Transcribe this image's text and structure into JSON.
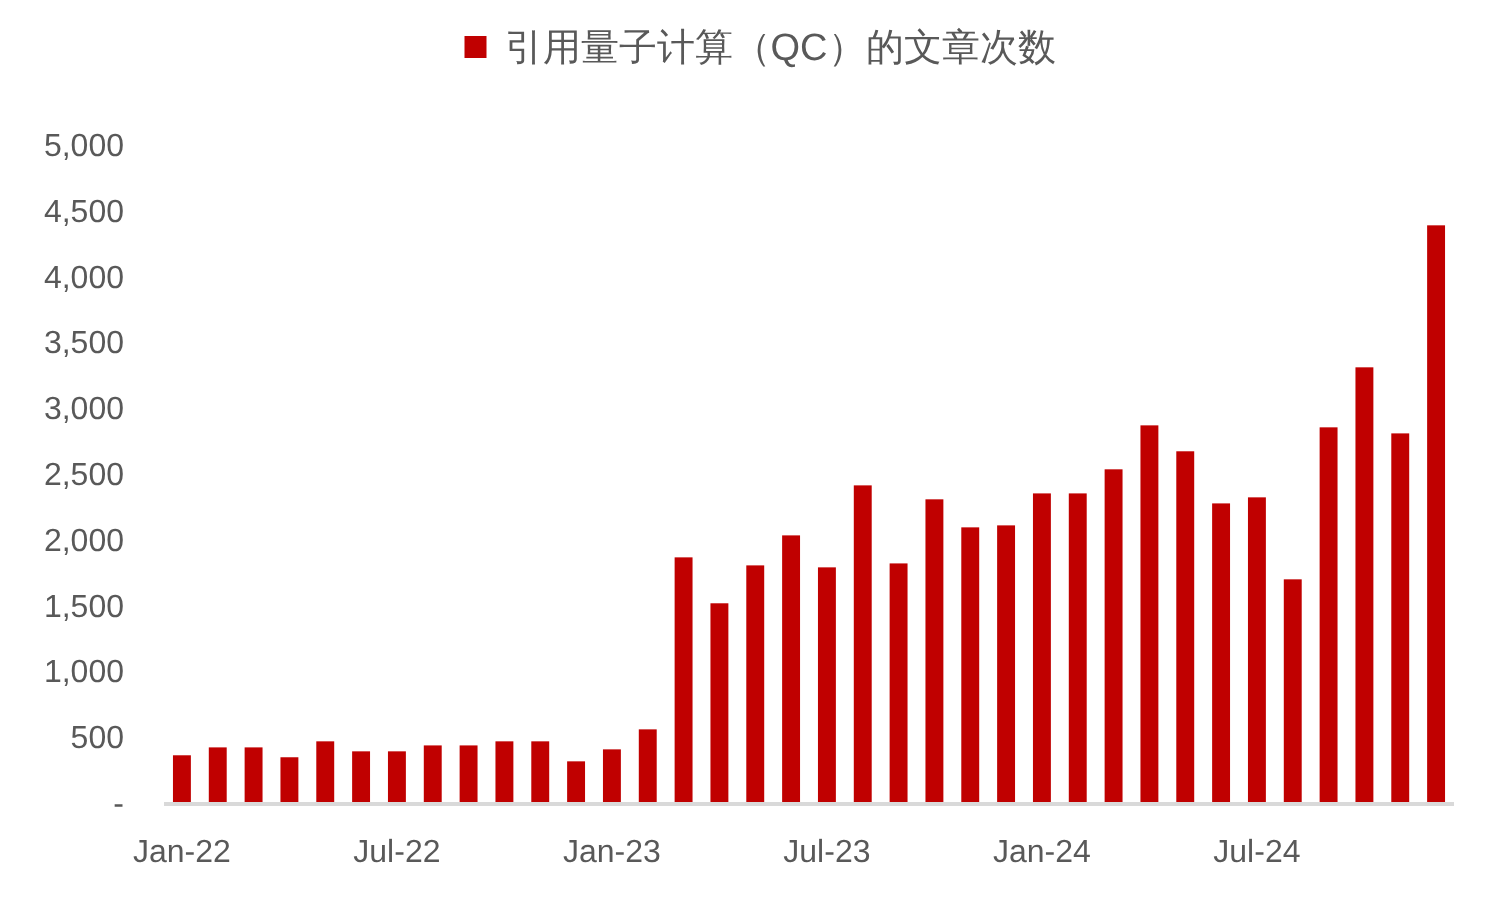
{
  "chart_data": {
    "type": "bar",
    "legend": "top",
    "grid": false,
    "categories": [
      "Jan-22",
      null,
      null,
      null,
      null,
      null,
      "Jul-22",
      null,
      null,
      null,
      null,
      null,
      "Jan-23",
      null,
      null,
      null,
      null,
      null,
      "Jul-23",
      null,
      null,
      null,
      null,
      null,
      "Jan-24",
      null,
      null,
      null,
      null,
      null,
      "Jul-24",
      null,
      null,
      null,
      null,
      null
    ],
    "series": [
      {
        "name": "引用量子计算（QC）的文章次数",
        "color": "#c00000",
        "values": [
          355,
          415,
          415,
          340,
          461,
          385,
          385,
          430,
          430,
          461,
          461,
          309,
          400,
          552,
          1859,
          1510,
          1798,
          2026,
          1783,
          2406,
          1813,
          2300,
          2087,
          2102,
          2345,
          2345,
          2528,
          2862,
          2665,
          2269,
          2315,
          1692,
          2847,
          3303,
          2801,
          4382
        ]
      }
    ],
    "ylim": [
      0,
      5000
    ],
    "yticks": [
      {
        "value": 0,
        "label": "-"
      },
      500,
      {
        "value": 1000,
        "label": "1,000"
      },
      {
        "value": 1500,
        "label": "1,500"
      },
      {
        "value": 2000,
        "label": "2,000"
      },
      {
        "value": 2500,
        "label": "2,500"
      },
      {
        "value": 3000,
        "label": "3,000"
      },
      {
        "value": 3500,
        "label": "3,500"
      },
      {
        "value": 4000,
        "label": "4,000"
      },
      {
        "value": 4500,
        "label": "4,500"
      },
      {
        "value": 5000,
        "label": "5,000"
      }
    ]
  }
}
